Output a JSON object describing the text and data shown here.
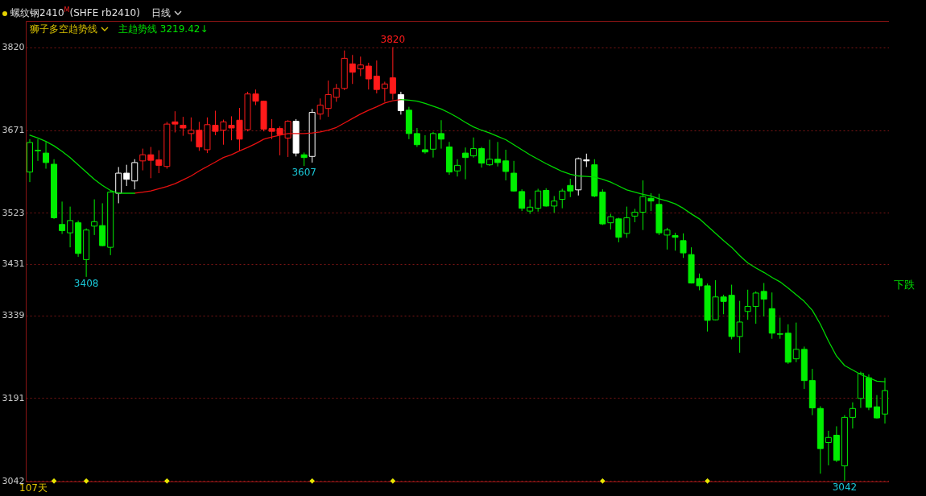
{
  "chart_data": {
    "type": "candlestick",
    "title": "螺纹钢2410$^{M}$(SHFE rb2410)",
    "categories": [
      null,
      null,
      null,
      null,
      null,
      null,
      null,
      null,
      null,
      null,
      null,
      null,
      null,
      null,
      null,
      null,
      null,
      null,
      null,
      null,
      null,
      null,
      null,
      null,
      null,
      null,
      null,
      null,
      null,
      null,
      null,
      null,
      null,
      null,
      null,
      null,
      null,
      null,
      null,
      null,
      null,
      null,
      null,
      null,
      null,
      null,
      null,
      null,
      null,
      null,
      null,
      null,
      null,
      null,
      null,
      null,
      null,
      null,
      null,
      null,
      null,
      null,
      null,
      null,
      null,
      null,
      null,
      null,
      null,
      null,
      null,
      null,
      null,
      null,
      null,
      null,
      null,
      null,
      null,
      null,
      null,
      null,
      null,
      null,
      null,
      null,
      null,
      null,
      null,
      null,
      null,
      null,
      null,
      null,
      null,
      null,
      null,
      null,
      null,
      null,
      null,
      null,
      null,
      null,
      null,
      null,
      null
    ],
    "ohlc": [
      [
        3596,
        3655,
        3578,
        3649
      ],
      [
        3634,
        3655,
        3616,
        3635
      ],
      [
        3630,
        3650,
        3602,
        3613
      ],
      [
        3610,
        3619,
        3512,
        3514
      ],
      [
        3502,
        3543,
        3485,
        3491
      ],
      [
        3487,
        3534,
        3461,
        3509
      ],
      [
        3505,
        3509,
        3444,
        3450
      ],
      [
        3439,
        3495,
        3408,
        3492
      ],
      [
        3499,
        3547,
        3483,
        3507
      ],
      [
        3500,
        3540,
        3463,
        3464
      ],
      [
        3461,
        3562,
        3447,
        3560
      ],
      [
        3558,
        3605,
        3540,
        3594
      ],
      [
        3594,
        3609,
        3571,
        3583
      ],
      [
        3580,
        3619,
        3565,
        3613
      ],
      [
        3616,
        3638,
        3599,
        3627
      ],
      [
        3627,
        3641,
        3585,
        3617
      ],
      [
        3618,
        3635,
        3594,
        3608
      ],
      [
        3606,
        3686,
        3602,
        3682
      ],
      [
        3686,
        3705,
        3667,
        3682
      ],
      [
        3680,
        3695,
        3661,
        3675
      ],
      [
        3665,
        3694,
        3651,
        3671
      ],
      [
        3671,
        3686,
        3634,
        3641
      ],
      [
        3636,
        3694,
        3630,
        3681
      ],
      [
        3680,
        3706,
        3662,
        3669
      ],
      [
        3671,
        3690,
        3645,
        3686
      ],
      [
        3680,
        3696,
        3653,
        3675
      ],
      [
        3689,
        3711,
        3634,
        3655
      ],
      [
        3672,
        3740,
        3669,
        3736
      ],
      [
        3736,
        3744,
        3716,
        3723
      ],
      [
        3723,
        3724,
        3669,
        3673
      ],
      [
        3674,
        3691,
        3655,
        3669
      ],
      [
        3674,
        3678,
        3626,
        3663
      ],
      [
        3657,
        3689,
        3623,
        3687
      ],
      [
        3687,
        3691,
        3624,
        3630
      ],
      [
        3627,
        3631,
        3607,
        3622
      ],
      [
        3624,
        3709,
        3613,
        3703
      ],
      [
        3700,
        3728,
        3690,
        3716
      ],
      [
        3710,
        3760,
        3695,
        3735
      ],
      [
        3730,
        3754,
        3722,
        3746
      ],
      [
        3746,
        3814,
        3743,
        3800
      ],
      [
        3790,
        3806,
        3754,
        3775
      ],
      [
        3781,
        3803,
        3768,
        3788
      ],
      [
        3786,
        3792,
        3744,
        3763
      ],
      [
        3768,
        3796,
        3737,
        3744
      ],
      [
        3746,
        3758,
        3722,
        3754
      ],
      [
        3765,
        3820,
        3726,
        3737
      ],
      [
        3735,
        3740,
        3699,
        3706
      ],
      [
        3707,
        3713,
        3655,
        3665
      ],
      [
        3665,
        3675,
        3641,
        3645
      ],
      [
        3636,
        3662,
        3629,
        3632
      ],
      [
        3637,
        3668,
        3622,
        3665
      ],
      [
        3665,
        3689,
        3638,
        3655
      ],
      [
        3641,
        3650,
        3591,
        3596
      ],
      [
        3598,
        3619,
        3588,
        3608
      ],
      [
        3630,
        3640,
        3583,
        3622
      ],
      [
        3625,
        3658,
        3622,
        3638
      ],
      [
        3638,
        3641,
        3604,
        3612
      ],
      [
        3609,
        3654,
        3607,
        3619
      ],
      [
        3619,
        3650,
        3606,
        3613
      ],
      [
        3616,
        3636,
        3581,
        3597
      ],
      [
        3594,
        3616,
        3561,
        3562
      ],
      [
        3561,
        3565,
        3526,
        3531
      ],
      [
        3526,
        3547,
        3521,
        3533
      ],
      [
        3531,
        3566,
        3525,
        3562
      ],
      [
        3563,
        3567,
        3534,
        3535
      ],
      [
        3535,
        3553,
        3523,
        3544
      ],
      [
        3547,
        3566,
        3531,
        3562
      ],
      [
        3572,
        3584,
        3551,
        3562
      ],
      [
        3564,
        3622,
        3554,
        3620
      ],
      [
        3618,
        3629,
        3605,
        3616
      ],
      [
        3609,
        3619,
        3551,
        3553
      ],
      [
        3560,
        3565,
        3501,
        3503
      ],
      [
        3505,
        3521,
        3493,
        3516
      ],
      [
        3512,
        3514,
        3470,
        3479
      ],
      [
        3486,
        3534,
        3478,
        3514
      ],
      [
        3517,
        3530,
        3506,
        3524
      ],
      [
        3524,
        3581,
        3492,
        3552
      ],
      [
        3549,
        3558,
        3526,
        3544
      ],
      [
        3538,
        3557,
        3483,
        3487
      ],
      [
        3483,
        3496,
        3457,
        3492
      ],
      [
        3482,
        3487,
        3455,
        3479
      ],
      [
        3473,
        3486,
        3442,
        3451
      ],
      [
        3448,
        3461,
        3396,
        3397
      ],
      [
        3405,
        3414,
        3384,
        3392
      ],
      [
        3392,
        3396,
        3310,
        3330
      ],
      [
        3331,
        3402,
        3330,
        3372
      ],
      [
        3372,
        3376,
        3341,
        3364
      ],
      [
        3375,
        3394,
        3296,
        3301
      ],
      [
        3301,
        3365,
        3272,
        3327
      ],
      [
        3346,
        3385,
        3331,
        3355
      ],
      [
        3355,
        3382,
        3324,
        3379
      ],
      [
        3382,
        3397,
        3337,
        3368
      ],
      [
        3351,
        3380,
        3297,
        3307
      ],
      [
        3306,
        3335,
        3297,
        3305
      ],
      [
        3307,
        3323,
        3252,
        3255
      ],
      [
        3261,
        3326,
        3255,
        3278
      ],
      [
        3278,
        3283,
        3207,
        3222
      ],
      [
        3222,
        3243,
        3160,
        3173
      ],
      [
        3172,
        3176,
        3055,
        3100
      ],
      [
        3111,
        3132,
        3070,
        3120
      ],
      [
        3124,
        3140,
        3076,
        3079
      ],
      [
        3069,
        3160,
        3042,
        3156
      ],
      [
        3156,
        3183,
        3136,
        3172
      ],
      [
        3190,
        3238,
        3173,
        3235
      ],
      [
        3227,
        3233,
        3169,
        3174
      ],
      [
        3175,
        3196,
        3154,
        3155
      ],
      [
        3162,
        3227,
        3145,
        3204
      ]
    ],
    "colors": [
      "#00ee00",
      "#00ee00",
      "#00ee00",
      "#00ee00",
      "#00ee00",
      "#00ee00",
      "#00ee00",
      "#00ee00",
      "#00ee00",
      "#00ee00",
      "#00ee00",
      "#ffffff",
      "#ffffff",
      "#ffffff",
      "#ff1a1a",
      "#ff1a1a",
      "#ff1a1a",
      "#ff1a1a",
      "#ff1a1a",
      "#ff1a1a",
      "#ff1a1a",
      "#ff1a1a",
      "#ff1a1a",
      "#ff1a1a",
      "#ff1a1a",
      "#ff1a1a",
      "#ff1a1a",
      "#ff1a1a",
      "#ff1a1a",
      "#ff1a1a",
      "#ff1a1a",
      "#ff1a1a",
      "#ff1a1a",
      "#ffffff",
      "#00ee00",
      "#ffffff",
      "#ff1a1a",
      "#ff1a1a",
      "#ff1a1a",
      "#ff1a1a",
      "#ff1a1a",
      "#ff1a1a",
      "#ff1a1a",
      "#ff1a1a",
      "#ff1a1a",
      "#ff1a1a",
      "#ffffff",
      "#00ee00",
      "#00ee00",
      "#00ee00",
      "#00ee00",
      "#00ee00",
      "#00ee00",
      "#00ee00",
      "#00ee00",
      "#00ee00",
      "#00ee00",
      "#00ee00",
      "#00ee00",
      "#00ee00",
      "#00ee00",
      "#00ee00",
      "#00ee00",
      "#00ee00",
      "#00ee00",
      "#00ee00",
      "#00ee00",
      "#00ee00",
      "#ffffff",
      "#ffffff",
      "#00ee00",
      "#00ee00",
      "#00ee00",
      "#00ee00",
      "#00ee00",
      "#00ee00",
      "#00ee00",
      "#00ee00",
      "#00ee00",
      "#00ee00",
      "#00ee00",
      "#00ee00",
      "#00ee00",
      "#00ee00",
      "#00ee00",
      "#00ee00",
      "#00ee00",
      "#00ee00",
      "#00ee00",
      "#00ee00",
      "#00ee00",
      "#00ee00",
      "#00ee00",
      "#00ee00",
      "#00ee00",
      "#00ee00",
      "#00ee00",
      "#00ee00",
      "#00ee00",
      "#00ee00",
      "#00ee00",
      "#00ee00",
      "#00ee00",
      "#00ee00",
      "#00ee00",
      "#00ee00",
      "#00ee00"
    ],
    "series": [
      {
        "type": "line",
        "color": "#e81010",
        "values": [
          null,
          null,
          null,
          null,
          null,
          null,
          null,
          null,
          null,
          null,
          null,
          null,
          null,
          3558,
          3560,
          3562,
          3566,
          3570,
          3575,
          3582,
          3589,
          3598,
          3606,
          3614,
          3622,
          3627,
          3634,
          3640,
          3647,
          3655,
          3659,
          3662,
          3665,
          3665,
          3665,
          3666,
          3668,
          3671,
          3676,
          3684,
          3692,
          3700,
          3707,
          3713,
          3720,
          3724,
          3726,
          null,
          null,
          null,
          null,
          null,
          null,
          null,
          null,
          null,
          null,
          null,
          null,
          null,
          null,
          null,
          null,
          null,
          null,
          null,
          null,
          null,
          null,
          null,
          null,
          null,
          null,
          null,
          null,
          null,
          null,
          null,
          null,
          null,
          null,
          null,
          null,
          null,
          null,
          null,
          null,
          null,
          null,
          null,
          null,
          null,
          null,
          null,
          null,
          null,
          null,
          null,
          null,
          null,
          null,
          null,
          null,
          null,
          null,
          null,
          null
        ]
      },
      {
        "type": "line",
        "color": "#00d800",
        "values": [
          3662,
          3657,
          3651,
          3643,
          3633,
          3622,
          3609,
          3596,
          3583,
          3572,
          3563,
          3558,
          3558,
          3558,
          null,
          null,
          null,
          null,
          null,
          null,
          null,
          null,
          null,
          null,
          null,
          null,
          null,
          null,
          null,
          null,
          null,
          null,
          null,
          null,
          null,
          null,
          null,
          null,
          null,
          null,
          null,
          null,
          null,
          null,
          null,
          null,
          3726,
          3725,
          3723,
          3719,
          3714,
          3709,
          3702,
          3694,
          3685,
          3677,
          3671,
          3666,
          3660,
          3654,
          3645,
          3636,
          3627,
          3619,
          3611,
          3604,
          3597,
          3592,
          3589,
          3588,
          3587,
          3583,
          3578,
          3571,
          3564,
          3560,
          3556,
          3553,
          3548,
          3544,
          3539,
          3531,
          3521,
          3512,
          3499,
          3486,
          3473,
          3461,
          3446,
          3433,
          3424,
          3416,
          3407,
          3399,
          3388,
          3376,
          3364,
          3348,
          3323,
          3293,
          3266,
          3249,
          3241,
          3233,
          3227,
          3221,
          3220
        ]
      },
      {
        "type": "scatter",
        "color": "#e6e600",
        "marker": "diamond",
        "values": [
          null,
          null,
          null,
          3042,
          null,
          null,
          null,
          3042,
          null,
          null,
          null,
          null,
          null,
          null,
          null,
          null,
          null,
          3042,
          null,
          null,
          null,
          null,
          null,
          null,
          null,
          null,
          null,
          null,
          null,
          null,
          null,
          null,
          null,
          null,
          null,
          3042,
          null,
          null,
          null,
          null,
          null,
          null,
          null,
          null,
          null,
          3042,
          null,
          null,
          null,
          null,
          null,
          null,
          null,
          null,
          null,
          null,
          null,
          null,
          null,
          null,
          null,
          null,
          null,
          null,
          null,
          null,
          null,
          null,
          null,
          null,
          null,
          3042,
          null,
          null,
          null,
          null,
          null,
          null,
          null,
          null,
          null,
          null,
          null,
          null,
          3042,
          null,
          null,
          null,
          null,
          null,
          null,
          null,
          null,
          null,
          null,
          null,
          null,
          null,
          null,
          null,
          null,
          null,
          null,
          null,
          null,
          null,
          null
        ]
      }
    ],
    "ylim": [
      3041,
      3867
    ],
    "yticks": [
      3042,
      3191,
      3339,
      3431,
      3523,
      3671,
      3820
    ],
    "grid": "y",
    "tick_labels": "y",
    "annotations": [
      "日线",
      "狮子多空趋势线",
      "主趋势线 3219.42↓",
      "下跌",
      "107天",
      "3408",
      "3607",
      "3820",
      "3042"
    ]
  }
}
